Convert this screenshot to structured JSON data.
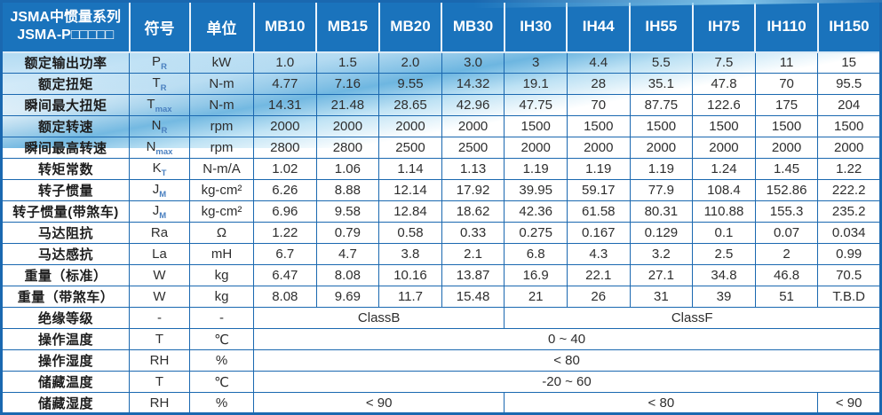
{
  "colors": {
    "header_bg": "#1a73bc",
    "grid_border": "#1a68b0",
    "wave_blue": "#3e9ed6",
    "subscript_blue": "#4a80c0",
    "header_text": "#ffffff",
    "body_text": "#2e2e2e"
  },
  "table": {
    "header": {
      "title_line1": "JSMA中惯量系列",
      "title_line2": "JSMA-P□□□□□",
      "symbol_col": "符号",
      "unit_col": "单位",
      "models": [
        "MB10",
        "MB15",
        "MB20",
        "MB30",
        "IH30",
        "IH44",
        "IH55",
        "IH75",
        "IH110",
        "IH150"
      ]
    },
    "rows": [
      {
        "label": "额定输出功率",
        "sym": "P",
        "sub": "R",
        "unit": "kW",
        "values": [
          "1.0",
          "1.5",
          "2.0",
          "3.0",
          "3",
          "4.4",
          "5.5",
          "7.5",
          "11",
          "15"
        ]
      },
      {
        "label": "额定扭矩",
        "sym": "T",
        "sub": "R",
        "unit": "N-m",
        "values": [
          "4.77",
          "7.16",
          "9.55",
          "14.32",
          "19.1",
          "28",
          "35.1",
          "47.8",
          "70",
          "95.5"
        ]
      },
      {
        "label": "瞬间最大扭矩",
        "sym": "T",
        "sub": "max",
        "unit": "N-m",
        "values": [
          "14.31",
          "21.48",
          "28.65",
          "42.96",
          "47.75",
          "70",
          "87.75",
          "122.6",
          "175",
          "204"
        ]
      },
      {
        "label": "额定转速",
        "sym": "N",
        "sub": "R",
        "unit": "rpm",
        "values": [
          "2000",
          "2000",
          "2000",
          "2000",
          "1500",
          "1500",
          "1500",
          "1500",
          "1500",
          "1500"
        ]
      },
      {
        "label": "瞬间最高转速",
        "sym": "N",
        "sub": "max",
        "unit": "rpm",
        "values": [
          "2800",
          "2800",
          "2500",
          "2500",
          "2000",
          "2000",
          "2000",
          "2000",
          "2000",
          "2000"
        ]
      },
      {
        "label": "转矩常数",
        "sym": "K",
        "sub": "T",
        "unit": "N-m/A",
        "values": [
          "1.02",
          "1.06",
          "1.14",
          "1.13",
          "1.19",
          "1.19",
          "1.19",
          "1.24",
          "1.45",
          "1.22"
        ]
      },
      {
        "label": "转子惯量",
        "sym": "J",
        "sub": "M",
        "unit": "kg-cm²",
        "values": [
          "6.26",
          "8.88",
          "12.14",
          "17.92",
          "39.95",
          "59.17",
          "77.9",
          "108.4",
          "152.86",
          "222.2"
        ]
      },
      {
        "label": "转子惯量(带煞车)",
        "sym": "J",
        "sub": "M",
        "unit": "kg-cm²",
        "values": [
          "6.96",
          "9.58",
          "12.84",
          "18.62",
          "42.36",
          "61.58",
          "80.31",
          "110.88",
          "155.3",
          "235.2"
        ]
      },
      {
        "label": "马达阻抗",
        "sym": "Ra",
        "sub": "",
        "unit": "Ω",
        "values": [
          "1.22",
          "0.79",
          "0.58",
          "0.33",
          "0.275",
          "0.167",
          "0.129",
          "0.1",
          "0.07",
          "0.034"
        ]
      },
      {
        "label": "马达感抗",
        "sym": "La",
        "sub": "",
        "unit": "mH",
        "values": [
          "6.7",
          "4.7",
          "3.8",
          "2.1",
          "6.8",
          "4.3",
          "3.2",
          "2.5",
          "2",
          "0.99"
        ]
      },
      {
        "label": "重量（标准）",
        "sym": "W",
        "sub": "",
        "unit": "kg",
        "values": [
          "6.47",
          "8.08",
          "10.16",
          "13.87",
          "16.9",
          "22.1",
          "27.1",
          "34.8",
          "46.8",
          "70.5"
        ]
      },
      {
        "label": "重量（带煞车）",
        "sym": "W",
        "sub": "",
        "unit": "kg",
        "values": [
          "8.08",
          "9.69",
          "11.7",
          "15.48",
          "21",
          "26",
          "31",
          "39",
          "51",
          "T.B.D"
        ]
      },
      {
        "label": "绝缘等级",
        "sym": "-",
        "sub": "",
        "unit": "-",
        "spans": [
          {
            "text": "ClassB",
            "cols": 4
          },
          {
            "text": "ClassF",
            "cols": 6
          }
        ]
      },
      {
        "label": "操作温度",
        "sym": "T",
        "sub": "",
        "unit": "℃",
        "spans": [
          {
            "text": "0 ~ 40",
            "cols": 10
          }
        ]
      },
      {
        "label": "操作湿度",
        "sym": "RH",
        "sub": "",
        "unit": "%",
        "spans": [
          {
            "text": "< 80",
            "cols": 10
          }
        ]
      },
      {
        "label": "储藏温度",
        "sym": "T",
        "sub": "",
        "unit": "℃",
        "spans": [
          {
            "text": "-20 ~ 60",
            "cols": 10
          }
        ]
      },
      {
        "label": "储藏湿度",
        "sym": "RH",
        "sub": "",
        "unit": "%",
        "spans": [
          {
            "text": "< 90",
            "cols": 4
          },
          {
            "text": "< 80",
            "cols": 5
          },
          {
            "text": "< 90",
            "cols": 1
          }
        ]
      }
    ]
  }
}
